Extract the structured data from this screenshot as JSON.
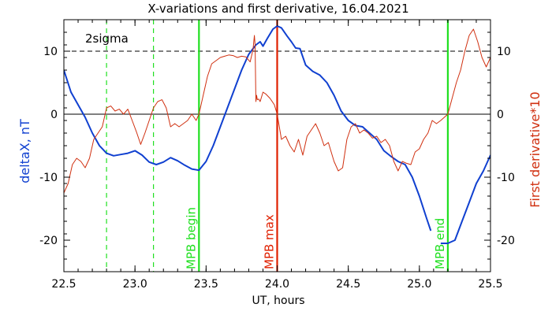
{
  "chart_data": {
    "type": "line",
    "title": "X-variations and first derivative, 16.04.2021",
    "xlabel": "UT, hours",
    "ylabel_left": "deltaX, nT",
    "ylabel_right": "First derivative*10",
    "xlim": [
      22.5,
      25.5
    ],
    "ylim": [
      -25,
      15
    ],
    "x_ticks": [
      22.5,
      23.0,
      23.5,
      24.0,
      24.5,
      25.0,
      25.5
    ],
    "x_tick_labels": [
      "22.5",
      "23.0",
      "23.5",
      "24.0",
      "24.5",
      "25.0",
      "25.5"
    ],
    "y_ticks": [
      -20,
      -10,
      0,
      10
    ],
    "y_tick_labels": [
      "-20",
      "-10",
      "0",
      "10"
    ],
    "colors": {
      "deltaX": "#1040d0",
      "derivative": "#d03010",
      "marker_green": "#20e020",
      "marker_red": "#e02000"
    },
    "threshold_label": "2sigma",
    "threshold_value": 10,
    "zero_line": 0,
    "vertical_markers": [
      {
        "x": 22.8,
        "style": "dashed",
        "color": "#20e020",
        "label": ""
      },
      {
        "x": 23.13,
        "style": "dashed",
        "color": "#20e020",
        "label": ""
      },
      {
        "x": 23.45,
        "style": "solid",
        "color": "#20e020",
        "label": "MPB begin"
      },
      {
        "x": 24.0,
        "style": "solid",
        "color": "#e02000",
        "label": "MPB max"
      },
      {
        "x": 25.2,
        "style": "solid",
        "color": "#20e020",
        "label": "MPB end"
      }
    ],
    "series": [
      {
        "key": "deltaX",
        "axis": "left",
        "color": "#1040d0",
        "segments": [
          [
            [
              22.5,
              7
            ],
            [
              22.55,
              3.5
            ],
            [
              22.6,
              1.5
            ],
            [
              22.65,
              -0.5
            ],
            [
              22.7,
              -3
            ],
            [
              22.75,
              -5
            ],
            [
              22.8,
              -6.2
            ],
            [
              22.85,
              -6.6
            ],
            [
              22.9,
              -6.4
            ],
            [
              22.95,
              -6.2
            ],
            [
              23.0,
              -5.8
            ],
            [
              23.05,
              -6.5
            ],
            [
              23.1,
              -7.6
            ],
            [
              23.15,
              -8
            ],
            [
              23.2,
              -7.6
            ],
            [
              23.25,
              -6.9
            ],
            [
              23.3,
              -7.4
            ],
            [
              23.35,
              -8.1
            ],
            [
              23.4,
              -8.7
            ],
            [
              23.45,
              -8.9
            ],
            [
              23.5,
              -7.5
            ],
            [
              23.55,
              -5
            ],
            [
              23.6,
              -2
            ],
            [
              23.65,
              1
            ],
            [
              23.7,
              4
            ],
            [
              23.75,
              7
            ],
            [
              23.8,
              9.5
            ],
            [
              23.85,
              11
            ],
            [
              23.88,
              11.5
            ],
            [
              23.9,
              10.8
            ],
            [
              23.93,
              12
            ],
            [
              23.97,
              13.5
            ],
            [
              24.0,
              14
            ],
            [
              24.03,
              13.7
            ],
            [
              24.07,
              12.4
            ],
            [
              24.1,
              11.5
            ],
            [
              24.13,
              10.5
            ],
            [
              24.16,
              10.4
            ],
            [
              24.2,
              7.8
            ],
            [
              24.25,
              6.8
            ],
            [
              24.3,
              6.2
            ],
            [
              24.35,
              5
            ],
            [
              24.4,
              3
            ],
            [
              24.45,
              0.5
            ],
            [
              24.5,
              -1
            ],
            [
              24.55,
              -1.8
            ],
            [
              24.6,
              -2
            ],
            [
              24.65,
              -3
            ],
            [
              24.7,
              -4
            ],
            [
              24.75,
              -5.8
            ],
            [
              24.8,
              -6.7
            ],
            [
              24.85,
              -7.5
            ],
            [
              24.9,
              -8
            ],
            [
              24.95,
              -10
            ],
            [
              25.0,
              -13
            ],
            [
              25.05,
              -16.5
            ],
            [
              25.08,
              -18.5
            ]
          ],
          [
            [
              25.15,
              -20.5
            ],
            [
              25.2,
              -20.5
            ],
            [
              25.25,
              -20
            ],
            [
              25.3,
              -17
            ],
            [
              25.35,
              -14
            ],
            [
              25.4,
              -11
            ],
            [
              25.45,
              -9
            ],
            [
              25.5,
              -6.5
            ]
          ]
        ]
      },
      {
        "key": "derivative",
        "axis": "right",
        "color": "#d03010",
        "segments": [
          [
            [
              22.5,
              -12.5
            ],
            [
              22.53,
              -11
            ],
            [
              22.56,
              -8
            ],
            [
              22.59,
              -7
            ],
            [
              22.62,
              -7.5
            ],
            [
              22.65,
              -8.5
            ],
            [
              22.68,
              -7
            ],
            [
              22.71,
              -4
            ],
            [
              22.74,
              -3
            ],
            [
              22.77,
              -2
            ],
            [
              22.8,
              1
            ],
            [
              22.83,
              1.3
            ],
            [
              22.86,
              0.5
            ],
            [
              22.89,
              0.8
            ],
            [
              22.92,
              0
            ],
            [
              22.95,
              0.8
            ],
            [
              22.98,
              -1
            ],
            [
              23.01,
              -2.8
            ],
            [
              23.04,
              -4.8
            ],
            [
              23.07,
              -3
            ],
            [
              23.1,
              -1
            ],
            [
              23.13,
              1
            ],
            [
              23.16,
              2
            ],
            [
              23.19,
              2.3
            ],
            [
              23.22,
              1
            ],
            [
              23.25,
              -2
            ],
            [
              23.28,
              -1.5
            ],
            [
              23.31,
              -2
            ],
            [
              23.34,
              -1.5
            ],
            [
              23.37,
              -1
            ],
            [
              23.4,
              0
            ],
            [
              23.43,
              -1
            ],
            [
              23.45,
              0
            ],
            [
              23.48,
              3
            ],
            [
              23.51,
              6
            ],
            [
              23.54,
              8
            ],
            [
              23.57,
              8.5
            ],
            [
              23.6,
              9
            ],
            [
              23.63,
              9.2
            ],
            [
              23.66,
              9.4
            ],
            [
              23.69,
              9.3
            ],
            [
              23.72,
              9
            ],
            [
              23.75,
              9.2
            ],
            [
              23.78,
              9.1
            ],
            [
              23.81,
              8.3
            ],
            [
              23.83,
              10.2
            ],
            [
              23.84,
              12.5
            ],
            [
              23.845,
              11
            ],
            [
              23.85,
              2
            ],
            [
              23.855,
              3
            ],
            [
              23.86,
              2.3
            ],
            [
              23.87,
              2.4
            ],
            [
              23.88,
              2
            ],
            [
              23.9,
              3.5
            ],
            [
              23.92,
              3.2
            ],
            [
              23.95,
              2.5
            ],
            [
              23.98,
              1.5
            ],
            [
              24.0,
              0
            ],
            [
              24.03,
              -4
            ],
            [
              24.06,
              -3.5
            ],
            [
              24.09,
              -5
            ],
            [
              24.12,
              -6
            ],
            [
              24.15,
              -4
            ],
            [
              24.18,
              -6.5
            ],
            [
              24.21,
              -3.5
            ],
            [
              24.24,
              -2.5
            ],
            [
              24.27,
              -1.5
            ],
            [
              24.3,
              -3
            ],
            [
              24.33,
              -5
            ],
            [
              24.36,
              -4.5
            ],
            [
              24.4,
              -7.5
            ],
            [
              24.43,
              -9
            ],
            [
              24.46,
              -8.5
            ],
            [
              24.49,
              -4
            ],
            [
              24.52,
              -2
            ],
            [
              24.55,
              -1.5
            ],
            [
              24.58,
              -3
            ],
            [
              24.61,
              -2.5
            ],
            [
              24.64,
              -3
            ],
            [
              24.67,
              -3.8
            ],
            [
              24.7,
              -3.5
            ],
            [
              24.73,
              -4.5
            ],
            [
              24.76,
              -4
            ],
            [
              24.79,
              -5
            ],
            [
              24.82,
              -7.5
            ],
            [
              24.85,
              -9
            ],
            [
              24.88,
              -7.5
            ],
            [
              24.91,
              -7.8
            ],
            [
              24.94,
              -8
            ],
            [
              24.97,
              -6
            ],
            [
              25.0,
              -5.5
            ],
            [
              25.03,
              -4
            ],
            [
              25.06,
              -3
            ],
            [
              25.09,
              -1
            ],
            [
              25.12,
              -1.5
            ],
            [
              25.15,
              -1
            ],
            [
              25.2,
              0
            ],
            [
              25.23,
              2.5
            ],
            [
              25.26,
              5
            ],
            [
              25.29,
              7
            ],
            [
              25.32,
              10
            ],
            [
              25.35,
              12.5
            ],
            [
              25.38,
              13.5
            ],
            [
              25.41,
              11.5
            ],
            [
              25.44,
              9
            ],
            [
              25.47,
              7.5
            ],
            [
              25.5,
              9
            ]
          ]
        ]
      }
    ]
  }
}
